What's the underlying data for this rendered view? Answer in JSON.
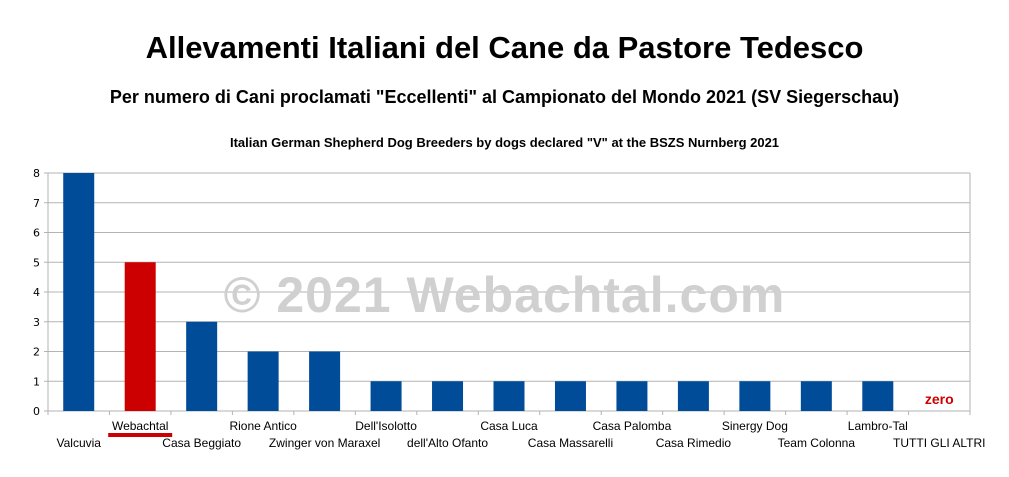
{
  "header": {
    "title": "Allevamenti Italiani del Cane da Pastore Tedesco",
    "subtitle": "Per numero di Cani proclamati \"Eccellenti\" al Campionato del Mondo 2021 (SV Siegerschau)",
    "subtitle_en": "Italian German Shepherd Dog Breeders by dogs declared \"V\" at the BSZS Nurnberg 2021"
  },
  "watermark": "© 2021 Webachtal.com",
  "chart_data": {
    "type": "bar",
    "categories": [
      "Valcuvia",
      "Webachtal",
      "Casa Beggiato",
      "Rione Antico",
      "Zwinger von Maraxel",
      "Dell'Isolotto",
      "dell'Alto Ofanto",
      "Casa Luca",
      "Casa Massarelli",
      "Casa Palomba",
      "Casa Rimedio",
      "Sinergy Dog",
      "Team Colonna",
      "Lambro-Tal",
      "TUTTI GLI ALTRI"
    ],
    "values": [
      8,
      5,
      3,
      2,
      2,
      1,
      1,
      1,
      1,
      1,
      1,
      1,
      1,
      1,
      0
    ],
    "value_labels": [
      "",
      "",
      "",
      "",
      "",
      "",
      "",
      "",
      "",
      "",
      "",
      "",
      "",
      "",
      "zero"
    ],
    "ylim": [
      0,
      8
    ],
    "yticks": [
      "0",
      "1",
      "2",
      "3",
      "4",
      "5",
      "6",
      "7",
      "8"
    ],
    "grid": true,
    "colors": {
      "default": "#004c99",
      "highlight": "#cc0000",
      "highlight_category": "Webachtal",
      "grid": "#b3b3b3"
    }
  }
}
